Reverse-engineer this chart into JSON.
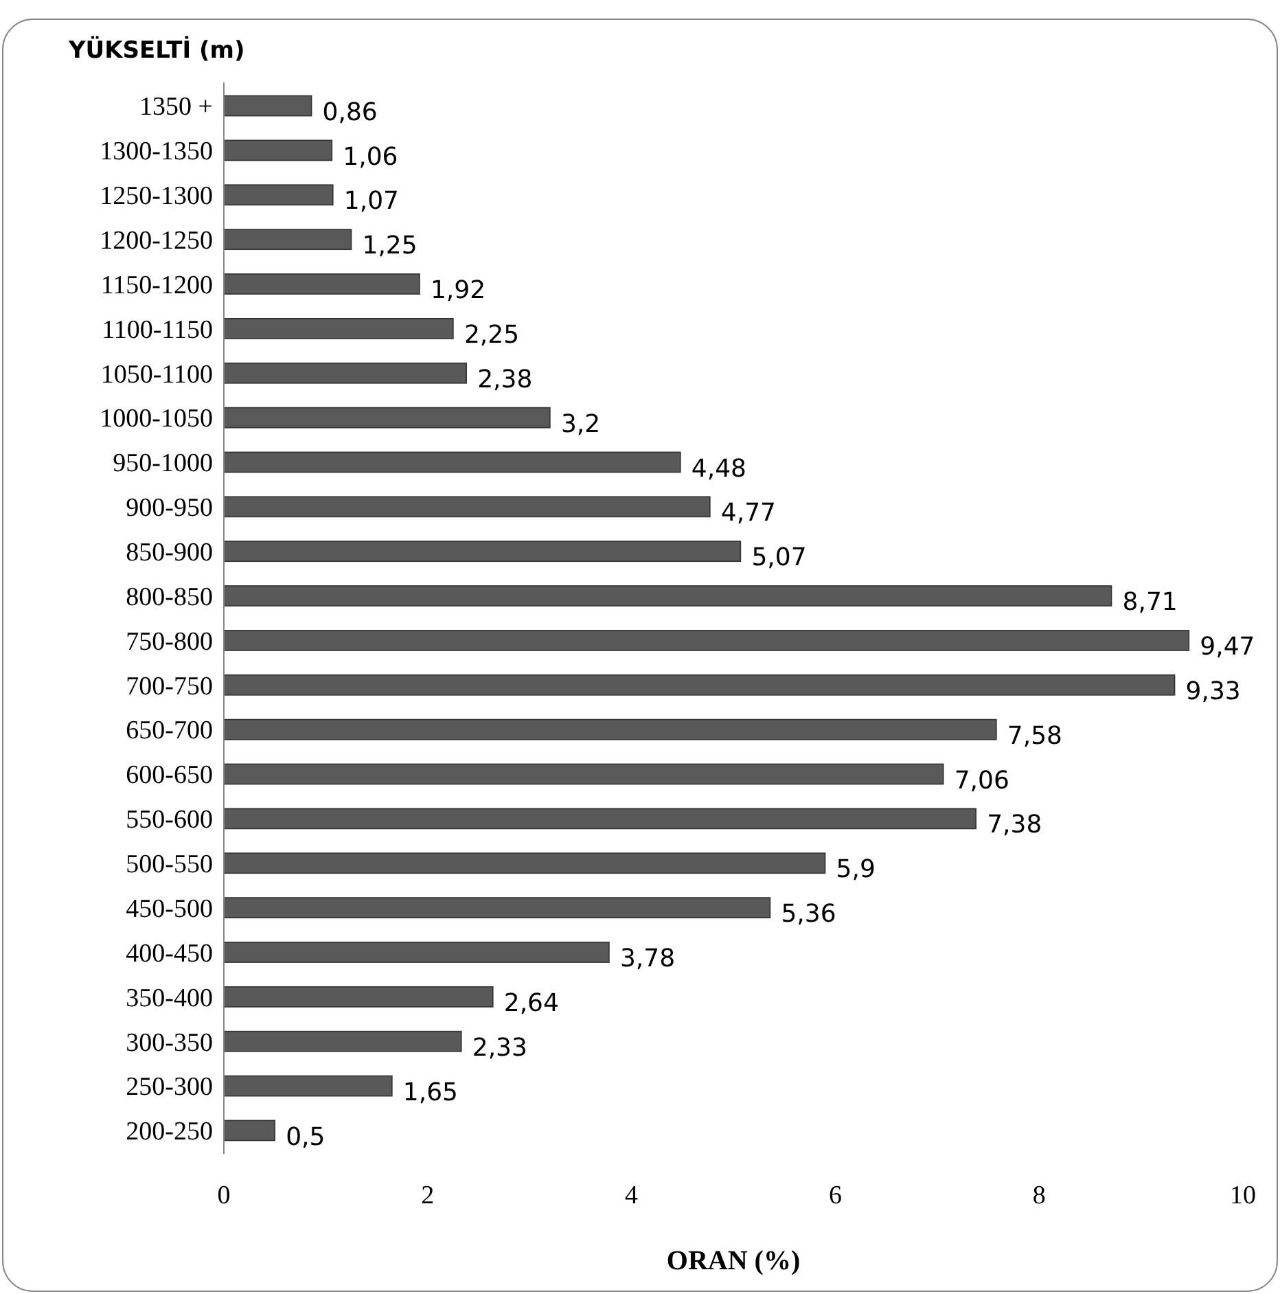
{
  "chart_data": {
    "type": "bar",
    "orientation": "horizontal",
    "ylabel": "YÜKSELTİ (m)",
    "xlabel": "ORAN (%)",
    "categories": [
      "1350 +",
      "1300-1350",
      "1250-1300",
      "1200-1250",
      "1150-1200",
      "1100-1150",
      "1050-1100",
      "1000-1050",
      "950-1000",
      "900-950",
      "850-900",
      "800-850",
      "750-800",
      "700-750",
      "650-700",
      "600-650",
      "550-600",
      "500-550",
      "450-500",
      "400-450",
      "350-400",
      "300-350",
      "250-300",
      "200-250"
    ],
    "values": [
      0.86,
      1.06,
      1.07,
      1.25,
      1.92,
      2.25,
      2.38,
      3.2,
      4.48,
      4.77,
      5.07,
      8.71,
      9.47,
      9.33,
      7.58,
      7.06,
      7.38,
      5.9,
      5.36,
      3.78,
      2.64,
      2.33,
      1.65,
      0.5
    ],
    "value_labels": [
      "0,86",
      "1,06",
      "1,07",
      "1,25",
      "1,92",
      "2,25",
      "2,38",
      "3,2",
      "4,48",
      "4,77",
      "5,07",
      "8,71",
      "9,47",
      "9,33",
      "7,58",
      "7,06",
      "7,38",
      "5,9",
      "5,36",
      "3,78",
      "2,64",
      "2,33",
      "1,65",
      "0,5"
    ],
    "color": "#595959",
    "xlim": [
      0,
      10
    ],
    "xticks": [
      0,
      2,
      4,
      6,
      8,
      10
    ],
    "grid": false
  }
}
